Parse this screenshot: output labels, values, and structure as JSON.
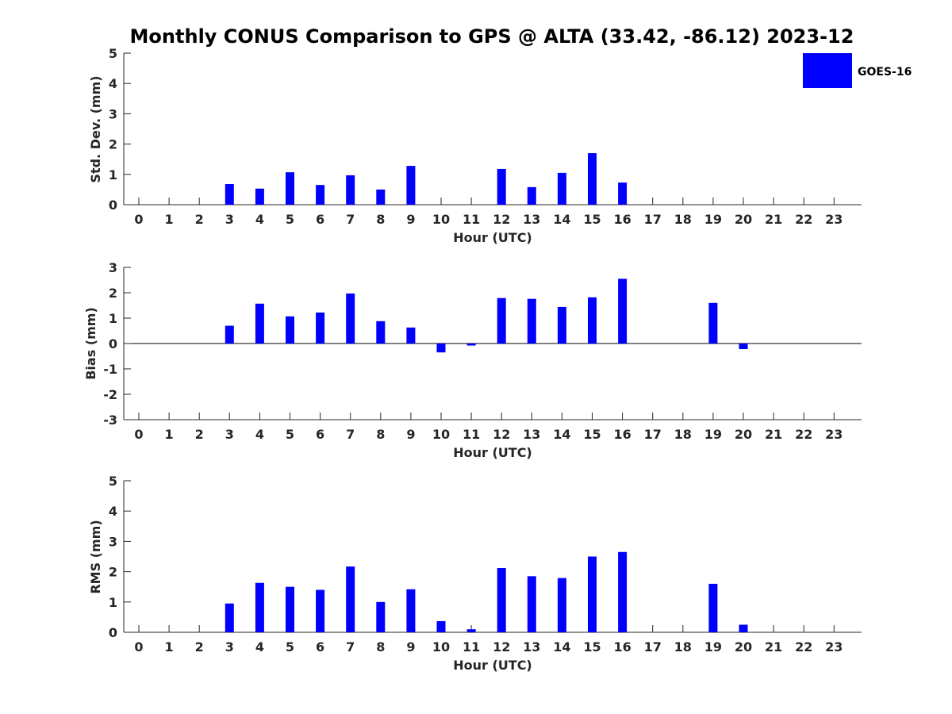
{
  "title": "Monthly CONUS Comparison to GPS @ ALTA (33.42, -86.12) 2023-12",
  "legend": {
    "label": "GOES-16",
    "color": "#0000ff",
    "placement": "top-right"
  },
  "chart_data": [
    {
      "type": "bar",
      "xlabel": "Hour (UTC)",
      "ylabel": "Std. Dev. (mm)",
      "ylim": [
        0,
        5
      ],
      "yticks": [
        0,
        1,
        2,
        3,
        4,
        5
      ],
      "categories": [
        "0",
        "1",
        "2",
        "3",
        "4",
        "5",
        "6",
        "7",
        "8",
        "9",
        "10",
        "11",
        "12",
        "13",
        "14",
        "15",
        "16",
        "17",
        "18",
        "19",
        "20",
        "21",
        "22",
        "23"
      ],
      "series": [
        {
          "name": "GOES-16",
          "color": "#0000ff",
          "values": [
            null,
            null,
            null,
            0.68,
            0.53,
            1.07,
            0.65,
            0.97,
            0.5,
            1.28,
            null,
            null,
            1.18,
            0.58,
            1.05,
            1.7,
            0.73,
            null,
            null,
            null,
            null,
            null,
            null,
            null
          ]
        }
      ]
    },
    {
      "type": "bar",
      "xlabel": "Hour (UTC)",
      "ylabel": "Bias (mm)",
      "ylim": [
        -3,
        3
      ],
      "yticks": [
        -3,
        -2,
        -1,
        0,
        1,
        2,
        3
      ],
      "categories": [
        "0",
        "1",
        "2",
        "3",
        "4",
        "5",
        "6",
        "7",
        "8",
        "9",
        "10",
        "11",
        "12",
        "13",
        "14",
        "15",
        "16",
        "17",
        "18",
        "19",
        "20",
        "21",
        "22",
        "23"
      ],
      "series": [
        {
          "name": "GOES-16",
          "color": "#0000ff",
          "values": [
            null,
            null,
            null,
            0.7,
            1.57,
            1.07,
            1.22,
            1.97,
            0.88,
            0.63,
            -0.35,
            -0.08,
            1.79,
            1.76,
            1.44,
            1.82,
            2.55,
            null,
            null,
            1.6,
            -0.22,
            null,
            null,
            null
          ]
        }
      ]
    },
    {
      "type": "bar",
      "xlabel": "Hour (UTC)",
      "ylabel": "RMS (mm)",
      "ylim": [
        0,
        5
      ],
      "yticks": [
        0,
        1,
        2,
        3,
        4,
        5
      ],
      "categories": [
        "0",
        "1",
        "2",
        "3",
        "4",
        "5",
        "6",
        "7",
        "8",
        "9",
        "10",
        "11",
        "12",
        "13",
        "14",
        "15",
        "16",
        "17",
        "18",
        "19",
        "20",
        "21",
        "22",
        "23"
      ],
      "series": [
        {
          "name": "GOES-16",
          "color": "#0000ff",
          "values": [
            null,
            null,
            null,
            0.95,
            1.63,
            1.5,
            1.4,
            2.17,
            1.0,
            1.42,
            0.37,
            0.1,
            2.12,
            1.85,
            1.79,
            2.5,
            2.65,
            null,
            null,
            1.6,
            0.25,
            null,
            null,
            null
          ]
        }
      ]
    }
  ]
}
